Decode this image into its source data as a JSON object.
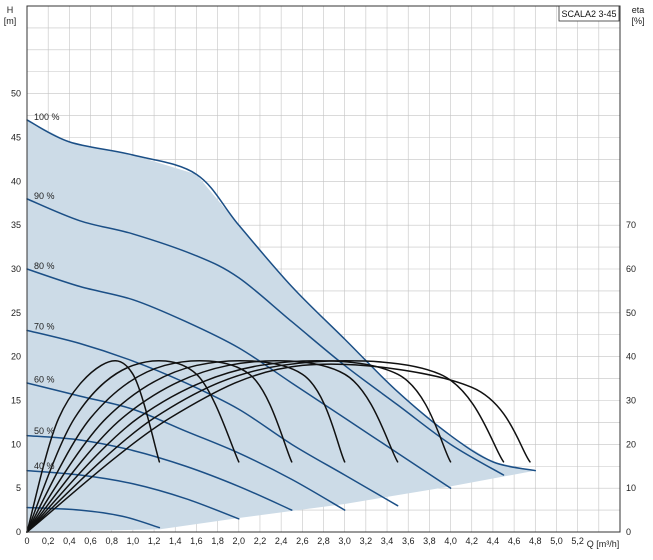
{
  "chart_data": {
    "type": "line",
    "title": "SCALA2 3-45",
    "x_axis": {
      "label": "Q [m³/h]",
      "min": 0,
      "max": 5.6,
      "ticks": [
        "0",
        "0,2",
        "0,4",
        "0,6",
        "0,8",
        "1,0",
        "1,2",
        "1,4",
        "1,6",
        "1,8",
        "2,0",
        "2,2",
        "2,4",
        "2,6",
        "2,8",
        "3,0",
        "3,2",
        "3,4",
        "3,6",
        "3,8",
        "4,0",
        "4,2",
        "4,4",
        "4,6",
        "4,8",
        "5,0",
        "5,2"
      ]
    },
    "y_left": {
      "label_line1": "H",
      "label_line2": "[m]",
      "min": 0,
      "max": 60,
      "ticks": [
        "0",
        "5",
        "10",
        "15",
        "20",
        "25",
        "30",
        "35",
        "40",
        "45",
        "50"
      ]
    },
    "y_right": {
      "label_line1": "eta",
      "label_line2": "[%]",
      "min": 0,
      "max": 120,
      "ticks": [
        "0",
        "10",
        "20",
        "30",
        "40",
        "50",
        "60",
        "70"
      ]
    },
    "grid": true,
    "colors": {
      "head_curve": "#1b4f86",
      "efficiency_curve": "#111111",
      "operating_area": "#ccdbe7",
      "grid": "#c4c4c4"
    },
    "head_curves": [
      {
        "label": "100 %",
        "points": [
          [
            0,
            47
          ],
          [
            0.4,
            44.5
          ],
          [
            1.0,
            43
          ],
          [
            1.6,
            40.8
          ],
          [
            2.0,
            35
          ],
          [
            2.5,
            28
          ],
          [
            3.0,
            22
          ],
          [
            3.5,
            16
          ],
          [
            4.0,
            11
          ],
          [
            4.4,
            8
          ],
          [
            4.8,
            7
          ]
        ]
      },
      {
        "label": "90 %",
        "points": [
          [
            0,
            38
          ],
          [
            0.5,
            35.5
          ],
          [
            1.0,
            34
          ],
          [
            1.6,
            31.5
          ],
          [
            2.0,
            29
          ],
          [
            2.5,
            24
          ],
          [
            3.0,
            19
          ],
          [
            3.5,
            14.5
          ],
          [
            4.0,
            10
          ],
          [
            4.5,
            6.5
          ]
        ]
      },
      {
        "label": "80 %",
        "points": [
          [
            0,
            30
          ],
          [
            0.5,
            28
          ],
          [
            1.0,
            26.5
          ],
          [
            1.5,
            24
          ],
          [
            2.0,
            21
          ],
          [
            2.5,
            17
          ],
          [
            3.0,
            13
          ],
          [
            3.5,
            9
          ],
          [
            4.0,
            5
          ]
        ]
      },
      {
        "label": "70 %",
        "points": [
          [
            0,
            23
          ],
          [
            0.5,
            21.5
          ],
          [
            1.0,
            19.5
          ],
          [
            1.5,
            17
          ],
          [
            2.0,
            14
          ],
          [
            2.5,
            10
          ],
          [
            3.0,
            6.5
          ],
          [
            3.5,
            3
          ]
        ]
      },
      {
        "label": "60 %",
        "points": [
          [
            0,
            17
          ],
          [
            0.5,
            15.5
          ],
          [
            1.0,
            14
          ],
          [
            1.5,
            11.5
          ],
          [
            2.0,
            9
          ],
          [
            2.5,
            6
          ],
          [
            3.0,
            2.5
          ]
        ]
      },
      {
        "label": "50 %",
        "points": [
          [
            0,
            11
          ],
          [
            0.5,
            10.5
          ],
          [
            1.0,
            9.3
          ],
          [
            1.5,
            7.5
          ],
          [
            2.0,
            5.2
          ],
          [
            2.5,
            2.5
          ]
        ]
      },
      {
        "label": "40 %",
        "points": [
          [
            0,
            7
          ],
          [
            0.5,
            6.5
          ],
          [
            1.0,
            5.5
          ],
          [
            1.5,
            3.8
          ],
          [
            2.0,
            1.5
          ]
        ]
      },
      {
        "label": "",
        "points": [
          [
            0,
            2.8
          ],
          [
            0.5,
            2.5
          ],
          [
            0.9,
            1.8
          ],
          [
            1.25,
            0.5
          ]
        ]
      }
    ],
    "operating_area_boundary": [
      [
        0,
        0
      ],
      [
        0,
        47
      ],
      [
        0.4,
        44.5
      ],
      [
        1.0,
        43
      ],
      [
        1.6,
        40.8
      ],
      [
        2.0,
        35
      ],
      [
        2.5,
        28
      ],
      [
        3.0,
        22
      ],
      [
        3.5,
        16
      ],
      [
        4.0,
        11
      ],
      [
        4.4,
        8
      ],
      [
        4.8,
        7
      ],
      [
        4.0,
        5.2
      ],
      [
        3.0,
        3.2
      ],
      [
        2.0,
        1.6
      ],
      [
        1.25,
        0.3
      ],
      [
        0,
        0
      ]
    ],
    "efficiency_curves": [
      {
        "points": [
          [
            0,
            0
          ],
          [
            0.3,
            26
          ],
          [
            0.7,
            38
          ],
          [
            1.0,
            36
          ],
          [
            1.25,
            16
          ]
        ]
      },
      {
        "points": [
          [
            0,
            0
          ],
          [
            0.45,
            26
          ],
          [
            1.0,
            38
          ],
          [
            1.6,
            36
          ],
          [
            2.0,
            16
          ]
        ]
      },
      {
        "points": [
          [
            0,
            0
          ],
          [
            0.6,
            26
          ],
          [
            1.3,
            38
          ],
          [
            2.1,
            36
          ],
          [
            2.5,
            16
          ]
        ]
      },
      {
        "points": [
          [
            0,
            0
          ],
          [
            0.75,
            26
          ],
          [
            1.6,
            38
          ],
          [
            2.6,
            36
          ],
          [
            3.0,
            16
          ]
        ]
      },
      {
        "points": [
          [
            0,
            0
          ],
          [
            0.9,
            26
          ],
          [
            1.9,
            38
          ],
          [
            3.0,
            36
          ],
          [
            3.5,
            16
          ]
        ]
      },
      {
        "points": [
          [
            0,
            0
          ],
          [
            1.05,
            26
          ],
          [
            2.2,
            38
          ],
          [
            3.5,
            36
          ],
          [
            4.0,
            16
          ]
        ]
      },
      {
        "points": [
          [
            0,
            0
          ],
          [
            1.2,
            26
          ],
          [
            2.4,
            38
          ],
          [
            3.9,
            36
          ],
          [
            4.5,
            16
          ]
        ]
      },
      {
        "points": [
          [
            0,
            0
          ],
          [
            1.35,
            26
          ],
          [
            2.6,
            38
          ],
          [
            4.2,
            33
          ],
          [
            4.75,
            16
          ]
        ]
      }
    ]
  }
}
